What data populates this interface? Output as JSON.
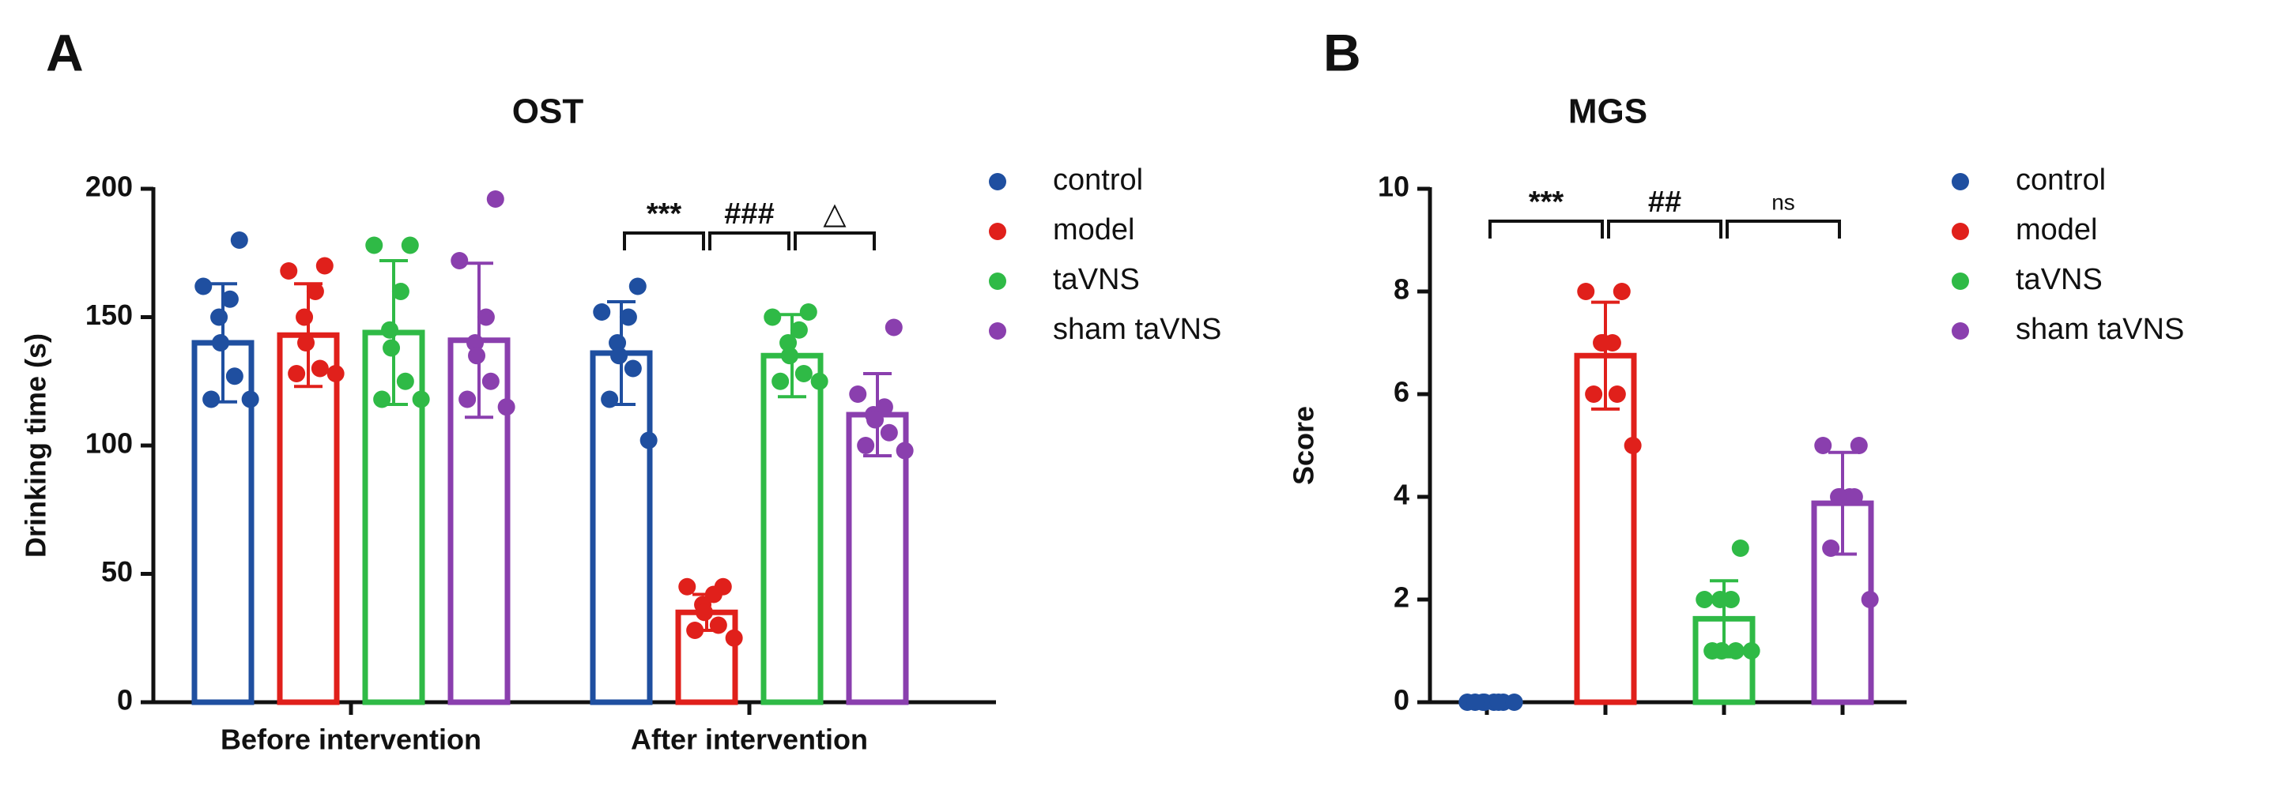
{
  "chart_data": [
    {
      "type": "bar",
      "panel": "A",
      "title": "OST",
      "ylabel": "Drinking time (s)",
      "categories": [
        "Before intervention",
        "After intervention"
      ],
      "ylim": [
        0,
        200
      ],
      "yticks": [
        0,
        50,
        100,
        150,
        200
      ],
      "series": [
        {
          "name": "control",
          "color": "#1f4fa0",
          "values": [
            140,
            136
          ],
          "errors": [
            23,
            20
          ],
          "points": [
            [
              180,
              162,
              157,
              150,
              140,
              127,
              118,
              118
            ],
            [
              162,
              152,
              150,
              140,
              135,
              130,
              118,
              102
            ]
          ]
        },
        {
          "name": "model",
          "color": "#e0201b",
          "values": [
            143,
            35
          ],
          "errors": [
            20,
            7
          ],
          "points": [
            [
              170,
              168,
              160,
              150,
              140,
              130,
              128,
              128
            ],
            [
              45,
              45,
              42,
              38,
              35,
              30,
              28,
              25
            ]
          ]
        },
        {
          "name": "taVNS",
          "color": "#2fba46",
          "values": [
            144,
            135
          ],
          "errors": [
            28,
            16
          ],
          "points": [
            [
              178,
              178,
              160,
              145,
              138,
              125,
              118,
              118
            ],
            [
              152,
              150,
              145,
              140,
              135,
              128,
              125,
              125
            ]
          ]
        },
        {
          "name": "sham taVNS",
          "color": "#8a3fae",
          "values": [
            141,
            112
          ],
          "errors": [
            30,
            16
          ],
          "points": [
            [
              196,
              172,
              150,
              140,
              135,
              125,
              118,
              115
            ],
            [
              146,
              120,
              115,
              112,
              110,
              105,
              100,
              98
            ]
          ]
        }
      ],
      "annotations": [
        "***",
        "###",
        "△"
      ]
    },
    {
      "type": "bar",
      "panel": "B",
      "title": "MGS",
      "ylabel": "Score",
      "categories": [
        null
      ],
      "ylim": [
        0,
        10
      ],
      "yticks": [
        0,
        2,
        4,
        6,
        8,
        10
      ],
      "series": [
        {
          "name": "control",
          "color": "#1f4fa0",
          "values": [
            0
          ],
          "errors": [
            0
          ],
          "points": [
            [
              0,
              0,
              0,
              0,
              0,
              0,
              0,
              0
            ]
          ]
        },
        {
          "name": "model",
          "color": "#e0201b",
          "values": [
            6.75
          ],
          "errors": [
            1.04
          ],
          "points": [
            [
              8,
              8,
              7,
              7,
              7,
              6,
              6,
              5
            ]
          ]
        },
        {
          "name": "taVNS",
          "color": "#2fba46",
          "values": [
            1.625
          ],
          "errors": [
            0.74
          ],
          "points": [
            [
              3,
              2,
              2,
              2,
              1,
              1,
              1,
              1
            ]
          ]
        },
        {
          "name": "sham taVNS",
          "color": "#8a3fae",
          "values": [
            3.875
          ],
          "errors": [
            0.99
          ],
          "points": [
            [
              5,
              5,
              4,
              4,
              4,
              4,
              3,
              2
            ]
          ]
        }
      ],
      "annotations": [
        "***",
        "##",
        "ns"
      ]
    }
  ]
}
